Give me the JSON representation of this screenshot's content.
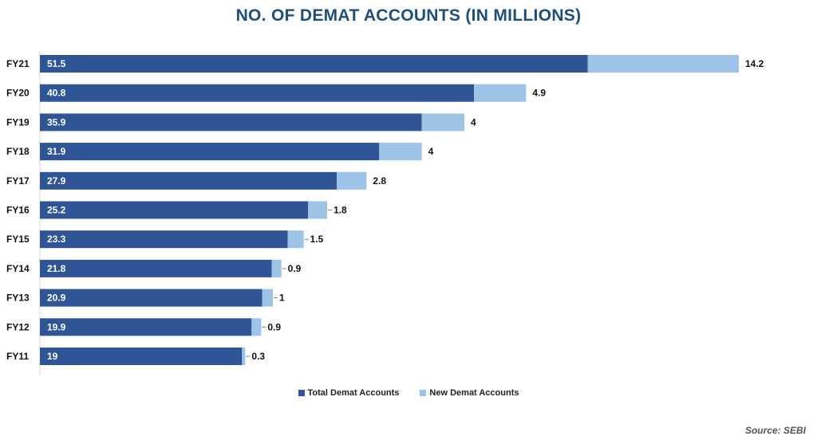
{
  "colors": {
    "total": "#2f5597",
    "new": "#9dc3e6",
    "title": "#1f4e79"
  },
  "chart_data": {
    "type": "bar",
    "orientation": "horizontal",
    "stacked": true,
    "title": "NO. OF DEMAT ACCOUNTS (IN MILLIONS)",
    "categories": [
      "FY21",
      "FY20",
      "FY19",
      "FY18",
      "FY17",
      "FY16",
      "FY15",
      "FY14",
      "FY13",
      "FY12",
      "FY11"
    ],
    "series": [
      {
        "name": "Total Demat Accounts",
        "values": [
          51.5,
          40.8,
          35.9,
          31.9,
          27.9,
          25.2,
          23.3,
          21.8,
          20.9,
          19.9,
          19
        ]
      },
      {
        "name": "New Demat Accounts",
        "values": [
          14.2,
          4.9,
          4,
          4,
          2.8,
          1.8,
          1.5,
          0.9,
          1,
          0.9,
          0.3
        ]
      }
    ],
    "xlim": [
      0,
      66
    ],
    "grid": false,
    "legend": "bottom"
  },
  "legend": {
    "total_label": "Total Demat Accounts",
    "new_label": "New Demat Accounts"
  },
  "source": "Source: SEBI"
}
